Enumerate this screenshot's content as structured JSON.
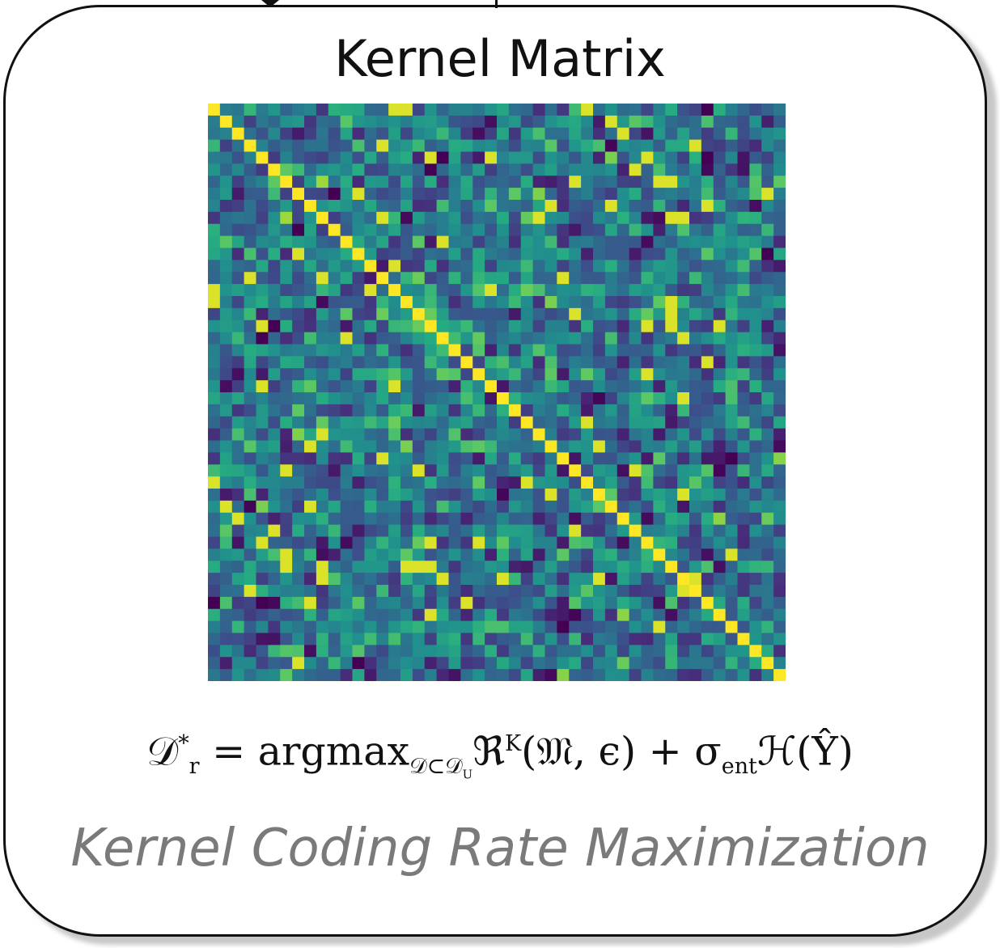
{
  "diagram": {
    "title": "Kernel Matrix",
    "formula": {
      "lhs": "𝒟",
      "lhs_sup": "*",
      "lhs_sub": "r",
      "eq": " = argmax",
      "argmax_sub": "𝒟⊂𝒟",
      "argmax_sub_sub": "U",
      "R": "ℜ",
      "R_sup": "K",
      "args": "(𝔐, ϵ) + σ",
      "sigma_sub": "ent",
      "H": "ℋ(Ŷ)"
    },
    "caption": "Kernel Coding Rate Maximization"
  },
  "chart_data": {
    "type": "heatmap",
    "title": "Kernel Matrix",
    "n": 48,
    "colormap": "viridis",
    "diagonal_value": 1.0,
    "value_range": [
      0,
      1
    ]
  }
}
